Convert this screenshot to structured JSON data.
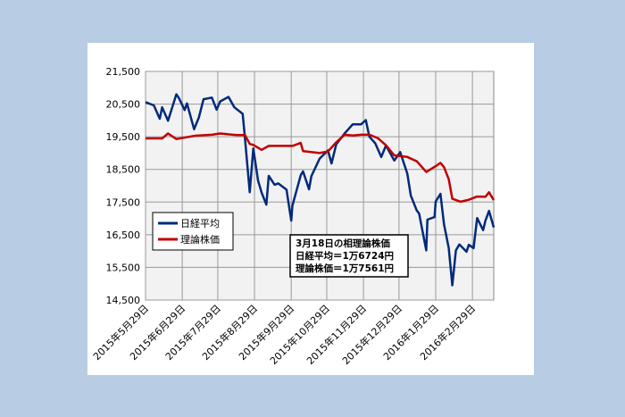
{
  "chart_data": {
    "type": "line",
    "ylim": [
      14500,
      21500
    ],
    "yticks": [
      {
        "value": 14500,
        "label": "14,500"
      },
      {
        "value": 15500,
        "label": "15,500"
      },
      {
        "value": 16500,
        "label": "16,500"
      },
      {
        "value": 17500,
        "label": "17,500"
      },
      {
        "value": 18500,
        "label": "18,500"
      },
      {
        "value": 19500,
        "label": "19,500"
      },
      {
        "value": 20500,
        "label": "20,500"
      },
      {
        "value": 21500,
        "label": "21,500"
      }
    ],
    "xlim": [
      "2015-05-29",
      "2016-03-18"
    ],
    "xticks": [
      {
        "value": "2015-05-29",
        "label": "2015年5月29日"
      },
      {
        "value": "2015-06-29",
        "label": "2015年6月29日"
      },
      {
        "value": "2015-07-29",
        "label": "2015年7月29日"
      },
      {
        "value": "2015-08-29",
        "label": "2015年8月29日"
      },
      {
        "value": "2015-09-29",
        "label": "2015年9月29日"
      },
      {
        "value": "2015-10-29",
        "label": "2015年10月29日"
      },
      {
        "value": "2015-11-29",
        "label": "2015年11月29日"
      },
      {
        "value": "2015-12-29",
        "label": "2015年12月29日"
      },
      {
        "value": "2016-01-29",
        "label": "2016年1月29日"
      },
      {
        "value": "2016-02-29",
        "label": "2016年2月29日"
      }
    ],
    "grid": true,
    "annotation": [
      "3月18日の相理論株価",
      "日経平均＝1万6724円",
      "理論株価＝1万7561円"
    ],
    "series": [
      {
        "name": "日経平均",
        "color": "#002a7a",
        "x": [
          "2015-05-29",
          "2015-06-05",
          "2015-06-10",
          "2015-06-12",
          "2015-06-17",
          "2015-06-24",
          "2015-06-26",
          "2015-07-01",
          "2015-07-03",
          "2015-07-09",
          "2015-07-13",
          "2015-07-17",
          "2015-07-24",
          "2015-07-28",
          "2015-07-31",
          "2015-08-07",
          "2015-08-12",
          "2015-08-19",
          "2015-08-21",
          "2015-08-25",
          "2015-08-28",
          "2015-09-01",
          "2015-09-04",
          "2015-09-08",
          "2015-09-10",
          "2015-09-15",
          "2015-09-18",
          "2015-09-25",
          "2015-09-29",
          "2015-09-30",
          "2015-10-07",
          "2015-10-09",
          "2015-10-14",
          "2015-10-16",
          "2015-10-23",
          "2015-10-30",
          "2015-11-02",
          "2015-11-06",
          "2015-11-13",
          "2015-11-20",
          "2015-11-27",
          "2015-12-01",
          "2015-12-04",
          "2015-12-09",
          "2015-12-14",
          "2015-12-18",
          "2015-12-25",
          "2015-12-30",
          "2016-01-05",
          "2016-01-08",
          "2016-01-13",
          "2016-01-15",
          "2016-01-21",
          "2016-01-22",
          "2016-01-28",
          "2016-01-29",
          "2016-02-02",
          "2016-02-05",
          "2016-02-09",
          "2016-02-12",
          "2016-02-15",
          "2016-02-18",
          "2016-02-24",
          "2016-02-26",
          "2016-03-01",
          "2016-03-04",
          "2016-03-09",
          "2016-03-11",
          "2016-03-14",
          "2016-03-18"
        ],
        "values": [
          20560,
          20460,
          20050,
          20400,
          19990,
          20800,
          20700,
          20320,
          20520,
          19730,
          20090,
          20650,
          20700,
          20330,
          20580,
          20720,
          20400,
          20200,
          19440,
          17800,
          19140,
          18160,
          17790,
          17420,
          18300,
          18030,
          18070,
          17880,
          16930,
          17390,
          18320,
          18440,
          17890,
          18290,
          18830,
          19080,
          18680,
          19270,
          19600,
          19880,
          19880,
          20010,
          19500,
          19300,
          18880,
          19230,
          18770,
          19030,
          18370,
          17700,
          17240,
          17150,
          16020,
          16960,
          17040,
          17520,
          17750,
          16820,
          16090,
          14950,
          16020,
          16200,
          15980,
          16190,
          16090,
          17010,
          16640,
          16930,
          17230,
          16724
        ]
      },
      {
        "name": "理論株価",
        "color": "#c00000",
        "x": [
          "2015-05-29",
          "2015-06-12",
          "2015-06-17",
          "2015-06-24",
          "2015-07-10",
          "2015-07-24",
          "2015-07-31",
          "2015-08-14",
          "2015-08-21",
          "2015-08-25",
          "2015-08-28",
          "2015-09-04",
          "2015-09-10",
          "2015-09-30",
          "2015-10-07",
          "2015-10-09",
          "2015-10-23",
          "2015-10-30",
          "2015-11-06",
          "2015-11-13",
          "2015-11-20",
          "2015-11-27",
          "2015-12-04",
          "2015-12-11",
          "2015-12-18",
          "2015-12-25",
          "2016-01-05",
          "2016-01-13",
          "2016-01-21",
          "2016-01-29",
          "2016-02-02",
          "2016-02-05",
          "2016-02-09",
          "2016-02-12",
          "2016-02-19",
          "2016-02-26",
          "2016-03-04",
          "2016-03-11",
          "2016-03-14",
          "2016-03-18"
        ],
        "values": [
          19450,
          19450,
          19600,
          19430,
          19530,
          19560,
          19600,
          19550,
          19550,
          19280,
          19250,
          19100,
          19220,
          19220,
          19310,
          19060,
          19000,
          19050,
          19330,
          19560,
          19540,
          19560,
          19560,
          19460,
          19240,
          18930,
          18880,
          18750,
          18420,
          18600,
          18700,
          18570,
          18200,
          17600,
          17510,
          17570,
          17670,
          17660,
          17800,
          17561
        ]
      }
    ]
  }
}
